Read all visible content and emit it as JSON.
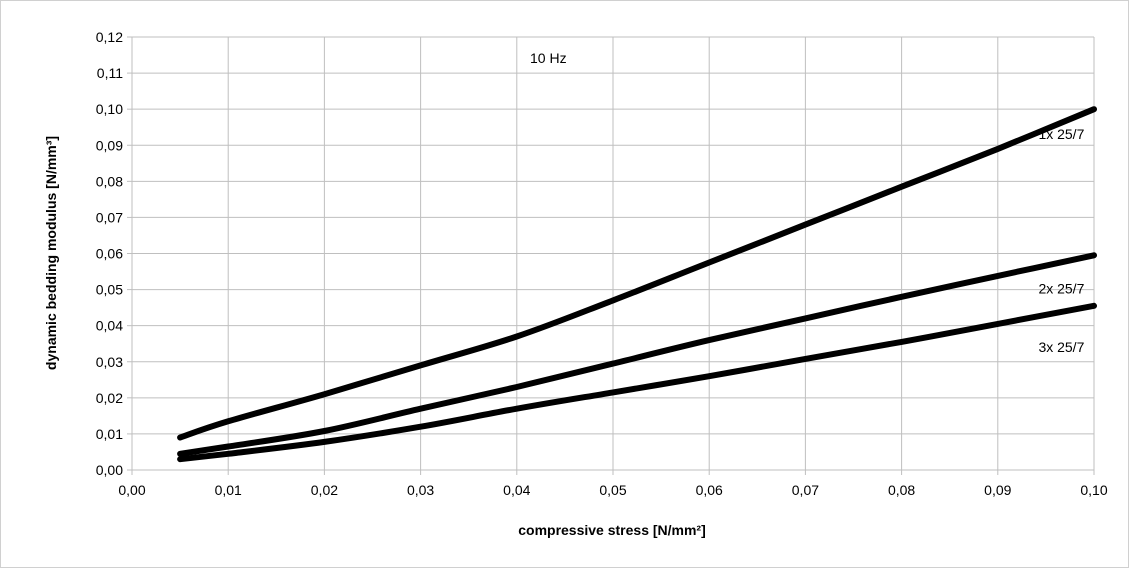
{
  "chart_data": {
    "type": "line",
    "title": "",
    "xlabel": "compressive stress [N/mm²]",
    "ylabel": "dynamic bedding modulus [N/mm³]",
    "annotation": "10 Hz",
    "xlim": [
      0.0,
      0.1
    ],
    "ylim": [
      0.0,
      0.12
    ],
    "grid": true,
    "x_ticks": [
      "0,00",
      "0,01",
      "0,02",
      "0,03",
      "0,04",
      "0,05",
      "0,06",
      "0,07",
      "0,08",
      "0,09",
      "0,10"
    ],
    "y_ticks": [
      "0,00",
      "0,01",
      "0,02",
      "0,03",
      "0,04",
      "0,05",
      "0,06",
      "0,07",
      "0,08",
      "0,09",
      "0,10",
      "0,11",
      "0,12"
    ],
    "series": [
      {
        "name": "1x 25/7",
        "x": [
          0.005,
          0.01,
          0.02,
          0.03,
          0.04,
          0.05,
          0.06,
          0.07,
          0.08,
          0.09,
          0.1
        ],
        "y": [
          0.009,
          0.0135,
          0.021,
          0.029,
          0.037,
          0.047,
          0.0575,
          0.068,
          0.0785,
          0.089,
          0.1
        ]
      },
      {
        "name": "2x 25/7",
        "x": [
          0.005,
          0.01,
          0.02,
          0.03,
          0.04,
          0.05,
          0.06,
          0.07,
          0.08,
          0.09,
          0.1
        ],
        "y": [
          0.0045,
          0.0065,
          0.0108,
          0.017,
          0.023,
          0.0295,
          0.036,
          0.042,
          0.048,
          0.0538,
          0.0595
        ]
      },
      {
        "name": "3x 25/7",
        "x": [
          0.005,
          0.01,
          0.02,
          0.03,
          0.04,
          0.05,
          0.06,
          0.07,
          0.08,
          0.09,
          0.1
        ],
        "y": [
          0.003,
          0.0045,
          0.0078,
          0.012,
          0.017,
          0.0215,
          0.026,
          0.0308,
          0.0355,
          0.0405,
          0.0455
        ]
      }
    ]
  }
}
